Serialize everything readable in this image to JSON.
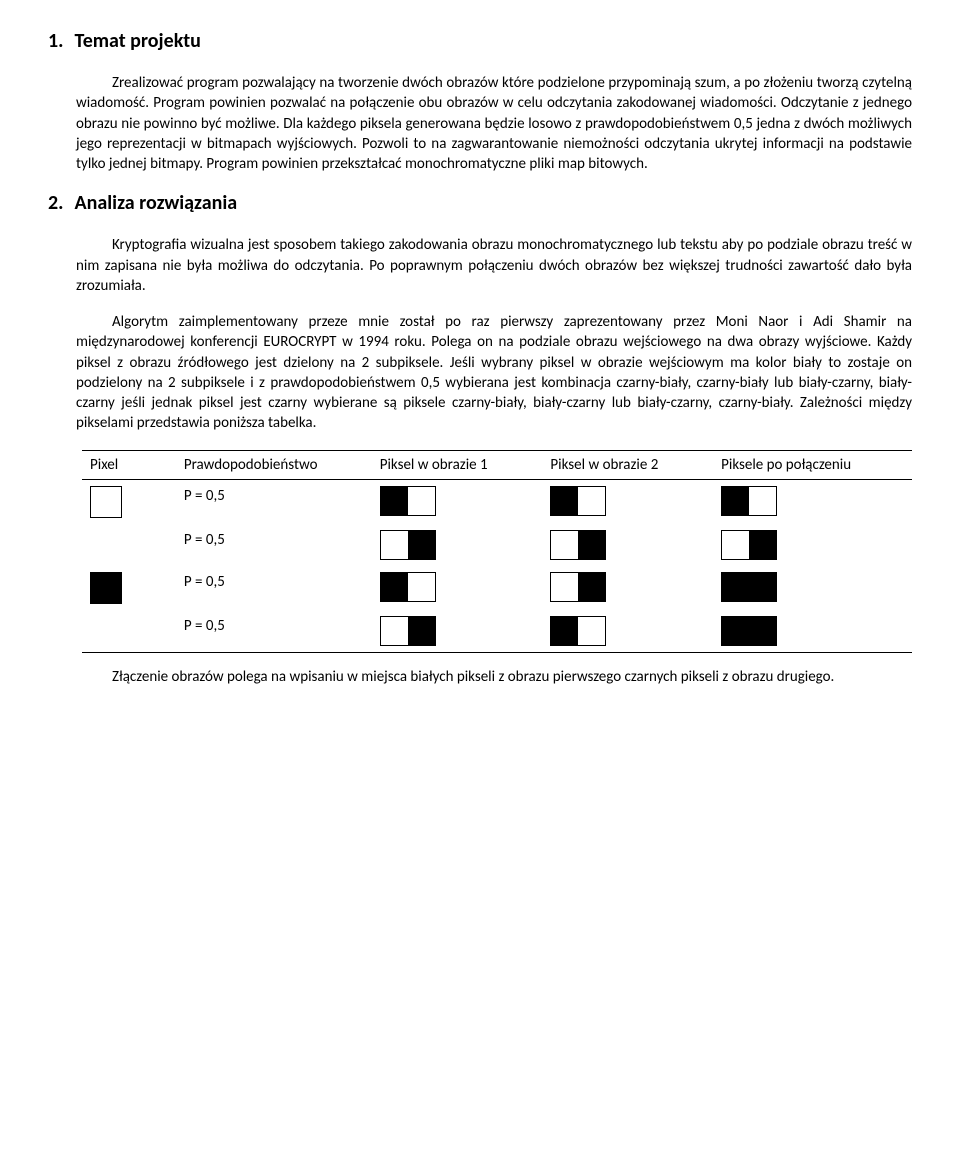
{
  "section1": {
    "number": "1.",
    "title": "Temat projektu",
    "paragraph": "Zrealizować program pozwalający na tworzenie dwóch obrazów które podzielone przypominają szum, a po złożeniu tworzą czytelną wiadomość. Program powinien pozwalać na połączenie obu obrazów w celu odczytania zakodowanej wiadomości. Odczytanie z jednego obrazu nie powinno być możliwe. Dla każdego piksela generowana będzie losowo z prawdopodobieństwem 0,5 jedna z dwóch możliwych jego reprezentacji w bitmapach wyjściowych. Pozwoli to na zagwarantowanie niemożności odczytania ukrytej informacji na podstawie tylko jednej bitmapy. Program powinien przekształcać monochromatyczne pliki map bitowych."
  },
  "section2": {
    "number": "2.",
    "title": "Analiza rozwiązania",
    "paragraph1": "Kryptografia wizualna jest sposobem takiego zakodowania obrazu monochromatycznego lub tekstu aby po podziale obrazu treść w nim zapisana nie była możliwa do odczytania. Po poprawnym połączeniu dwóch obrazów bez większej trudności zawartość dało była zrozumiała.",
    "paragraph2": "Algorytm zaimplementowany przeze mnie został po raz pierwszy zaprezentowany przez Moni Naor i Adi Shamir na międzynarodowej konferencji EUROCRYPT w 1994 roku. Polega on na podziale obrazu wejściowego na dwa obrazy wyjściowe. Każdy piksel z obrazu źródłowego jest dzielony na 2 subpiksele. Jeśli wybrany piksel w obrazie wejściowym ma kolor biały to zostaje on podzielony na 2 subpiksele i z prawdopodobieństwem 0,5 wybierana jest kombinacja czarny-biały, czarny-biały lub biały-czarny, biały-czarny jeśli jednak piksel jest czarny  wybierane są piksele czarny-biały, biały-czarny lub biały-czarny, czarny-biały. Zależności między pikselami przedstawia poniższa tabelka.",
    "paragraph3": "Złączenie obrazów polega na wpisaniu w miejsca białych pikseli z obrazu pierwszego czarnych pikseli z obrazu drugiego."
  },
  "table": {
    "headers": {
      "pixel": "Pixel",
      "prob": "Prawdopodobieństwo",
      "share1": "Piksel w obrazie 1",
      "share2": "Piksel w obrazie 2",
      "merge": "Piksele po połączeniu"
    },
    "rows": [
      {
        "input": "white",
        "prob": "P = 0,5",
        "s1": [
          "b",
          "w"
        ],
        "s2": [
          "b",
          "w"
        ],
        "m": [
          "b",
          "w"
        ]
      },
      {
        "input": "",
        "prob": "P = 0,5",
        "s1": [
          "w",
          "b"
        ],
        "s2": [
          "w",
          "b"
        ],
        "m": [
          "w",
          "b"
        ]
      },
      {
        "input": "black",
        "prob": "P = 0,5",
        "s1": [
          "b",
          "w"
        ],
        "s2": [
          "w",
          "b"
        ],
        "m": [
          "b",
          "b"
        ]
      },
      {
        "input": "",
        "prob": "P = 0,5",
        "s1": [
          "w",
          "b"
        ],
        "s2": [
          "b",
          "w"
        ],
        "m": [
          "b",
          "b"
        ]
      }
    ]
  },
  "colors": {
    "text": "#000000",
    "background": "#ffffff",
    "pixel_black": "#000000",
    "pixel_white": "#ffffff",
    "border": "#000000"
  },
  "typography": {
    "body_font": "Calibri",
    "body_size_pt": 11,
    "heading_size_pt": 15,
    "heading_weight": "bold"
  }
}
